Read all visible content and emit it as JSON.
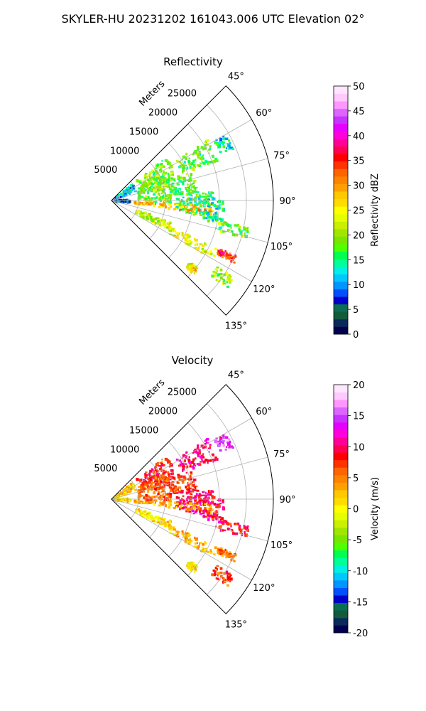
{
  "figure": {
    "suptitle": "SKYLER-HU  20231202  161043.006 UTC Elevation 02°"
  },
  "chart_data": [
    {
      "type": "heatmap",
      "projection": "polar-sector",
      "title": "Reflectivity",
      "radial_label": "Meters",
      "radial_ticks": [
        5000,
        10000,
        15000,
        20000,
        25000
      ],
      "radial_max": 30000,
      "azimuth_range": [
        45,
        135
      ],
      "azimuth_ticks": [
        "45°",
        "60°",
        "75°",
        "90°",
        "105°",
        "120°",
        "135°"
      ],
      "grid": true,
      "colorbar": {
        "label": "Reflectivity dBZ",
        "range": [
          0,
          50
        ],
        "ticks": [
          0,
          5,
          10,
          15,
          20,
          25,
          30,
          35,
          40,
          45,
          50
        ],
        "colors": [
          "#00004d",
          "#0a2a5a",
          "#145a3c",
          "#0a6e50",
          "#0000c8",
          "#0050ff",
          "#0096ff",
          "#00c8ff",
          "#00f0e6",
          "#00ff96",
          "#00ff50",
          "#50ff00",
          "#78e600",
          "#a0e600",
          "#c8f000",
          "#e6ff00",
          "#ffff00",
          "#ffdc00",
          "#ffc800",
          "#ffa000",
          "#ff8200",
          "#ff6400",
          "#ff3200",
          "#ff0000",
          "#ff0050",
          "#ff0096",
          "#ff00dc",
          "#e600ff",
          "#c832ff",
          "#dc64ff",
          "#ff96ff",
          "#ffc8ff",
          "#ffe6ff"
        ]
      },
      "echo_regions": [
        {
          "az": [
            52,
            73
          ],
          "r": [
            6000,
            13000
          ],
          "dbz": 19
        },
        {
          "az": [
            58,
            70
          ],
          "r": [
            14000,
            21000
          ],
          "dbz": 18
        },
        {
          "az": [
            60,
            67
          ],
          "r": [
            22000,
            24500
          ],
          "dbz": 13
        },
        {
          "az": [
            64,
            92
          ],
          "r": [
            5000,
            11000
          ],
          "dbz": 19
        },
        {
          "az": [
            70,
            86
          ],
          "r": [
            11000,
            16000
          ],
          "dbz": 17
        },
        {
          "az": [
            84,
            100
          ],
          "r": [
            12000,
            19000
          ],
          "dbz": 16
        },
        {
          "az": [
            88,
            102
          ],
          "r": [
            17000,
            21000
          ],
          "dbz": 14
        },
        {
          "az": [
            93,
            98
          ],
          "r": [
            3000,
            19000
          ],
          "dbz": 28
        },
        {
          "az": [
            101,
            106
          ],
          "r": [
            20000,
            26000
          ],
          "dbz": 18
        },
        {
          "az": [
            110,
            118
          ],
          "r": [
            5000,
            12000
          ],
          "dbz": 22
        },
        {
          "az": [
            114,
            120
          ],
          "r": [
            12000,
            22000
          ],
          "dbz": 24
        },
        {
          "az": [
            114,
            117
          ],
          "r": [
            22000,
            25500
          ],
          "dbz": 34
        },
        {
          "az": [
            122,
            127
          ],
          "r": [
            23000,
            27000
          ],
          "dbz": 20
        },
        {
          "az": [
            128,
            132
          ],
          "r": [
            18500,
            20500
          ],
          "dbz": 26
        },
        {
          "az": [
            52,
            70
          ],
          "r": [
            500,
            5000
          ],
          "dbz": 11
        },
        {
          "az": [
            88,
            100
          ],
          "r": [
            500,
            3500
          ],
          "dbz": 6
        }
      ]
    },
    {
      "type": "heatmap",
      "projection": "polar-sector",
      "title": "Velocity",
      "radial_label": "Meters",
      "radial_ticks": [
        5000,
        10000,
        15000,
        20000,
        25000
      ],
      "radial_max": 30000,
      "azimuth_range": [
        45,
        135
      ],
      "azimuth_ticks": [
        "45°",
        "60°",
        "75°",
        "90°",
        "105°",
        "120°",
        "135°"
      ],
      "grid": true,
      "colorbar": {
        "label": "Velocity (m/s)",
        "range": [
          -20,
          20
        ],
        "ticks": [
          -20,
          -15,
          -10,
          -5,
          0,
          5,
          10,
          15,
          20
        ],
        "colors": [
          "#00004d",
          "#0a2a5a",
          "#145a3c",
          "#0a6e50",
          "#0000c8",
          "#0050ff",
          "#0096ff",
          "#00c8ff",
          "#00f0e6",
          "#00ff96",
          "#00ff50",
          "#50ff00",
          "#78e600",
          "#a0e600",
          "#c8f000",
          "#e6ff00",
          "#ffff00",
          "#ffdc00",
          "#ffc800",
          "#ffa000",
          "#ff8200",
          "#ff6400",
          "#ff3200",
          "#ff0000",
          "#ff0050",
          "#ff0096",
          "#ff00dc",
          "#e600ff",
          "#c832ff",
          "#dc64ff",
          "#ff96ff",
          "#ffc8ff",
          "#ffe6ff"
        ]
      },
      "echo_regions": [
        {
          "az": [
            52,
            73
          ],
          "r": [
            6000,
            13000
          ],
          "vel": 8
        },
        {
          "az": [
            58,
            70
          ],
          "r": [
            14000,
            21000
          ],
          "vel": 10
        },
        {
          "az": [
            60,
            67
          ],
          "r": [
            22000,
            24500
          ],
          "vel": 14
        },
        {
          "az": [
            64,
            92
          ],
          "r": [
            5000,
            11000
          ],
          "vel": 6
        },
        {
          "az": [
            70,
            86
          ],
          "r": [
            11000,
            16000
          ],
          "vel": 7
        },
        {
          "az": [
            84,
            100
          ],
          "r": [
            12000,
            19000
          ],
          "vel": 10
        },
        {
          "az": [
            88,
            102
          ],
          "r": [
            17000,
            21000
          ],
          "vel": 9
        },
        {
          "az": [
            93,
            98
          ],
          "r": [
            3000,
            19000
          ],
          "vel": 3
        },
        {
          "az": [
            101,
            106
          ],
          "r": [
            20000,
            26000
          ],
          "vel": 9
        },
        {
          "az": [
            110,
            118
          ],
          "r": [
            5000,
            12000
          ],
          "vel": 1
        },
        {
          "az": [
            114,
            120
          ],
          "r": [
            12000,
            22000
          ],
          "vel": 3
        },
        {
          "az": [
            114,
            117
          ],
          "r": [
            22000,
            25500
          ],
          "vel": 5
        },
        {
          "az": [
            122,
            127
          ],
          "r": [
            23000,
            27000
          ],
          "vel": 7
        },
        {
          "az": [
            128,
            132
          ],
          "r": [
            18500,
            20500
          ],
          "vel": 1
        },
        {
          "az": [
            52,
            70
          ],
          "r": [
            500,
            5000
          ],
          "vel": 2
        },
        {
          "az": [
            88,
            100
          ],
          "r": [
            500,
            3500
          ],
          "vel": 1
        }
      ]
    }
  ]
}
